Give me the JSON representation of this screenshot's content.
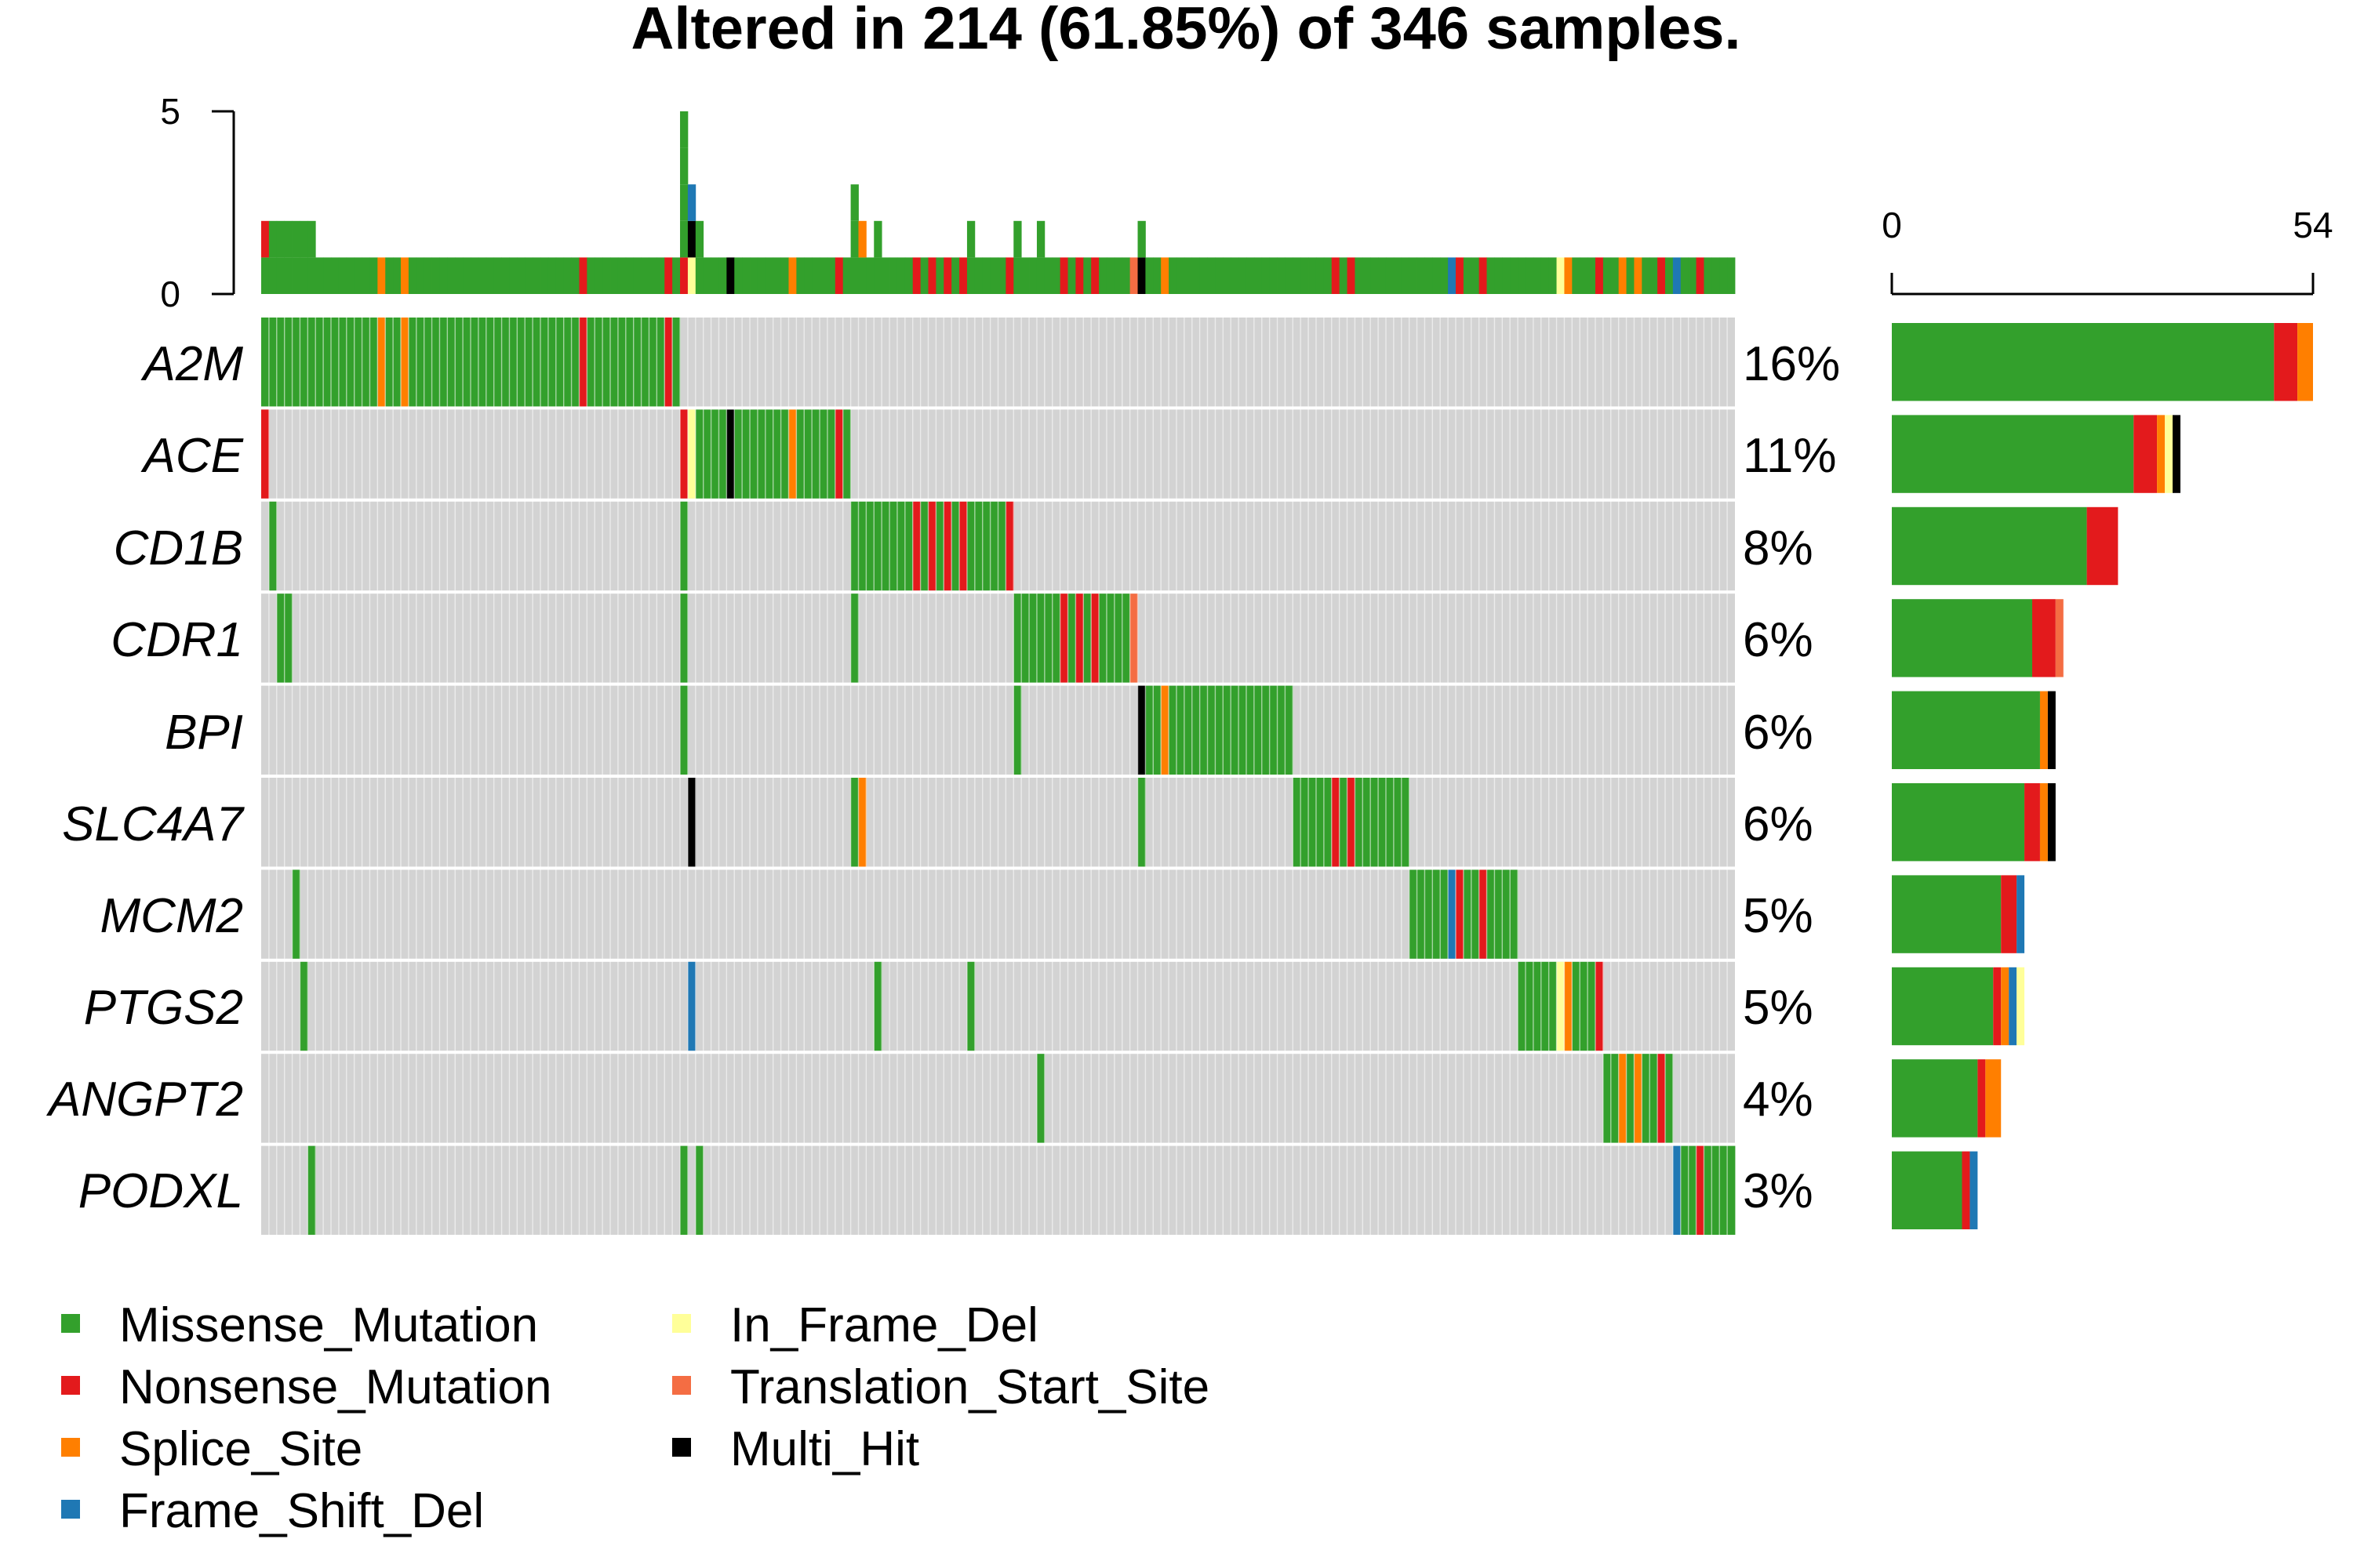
{
  "title": "Altered in 214 (61.85%) of 346 samples.",
  "colors": {
    "Missense_Mutation": "#33A02C",
    "Nonsense_Mutation": "#E31A1C",
    "Splice_Site": "#FF7F00",
    "Frame_Shift_Del": "#1F78B4",
    "In_Frame_Del": "#FFFF99",
    "Translation_Start_Site": "#F46D43",
    "Multi_Hit": "#000000",
    "no_alteration": "#D3D3D3"
  },
  "legend": [
    "Missense_Mutation",
    "Nonsense_Mutation",
    "Splice_Site",
    "Frame_Shift_Del",
    "In_Frame_Del",
    "Translation_Start_Site",
    "Multi_Hit"
  ],
  "chart_data": {
    "type": "oncoplot",
    "title": "Altered in 214 (61.85%) of 346 samples.",
    "total_samples": 346,
    "altered_samples": 214,
    "top_axis": {
      "ticks": [
        "0",
        "5"
      ],
      "range": [
        0,
        5
      ]
    },
    "right_axis": {
      "ticks": [
        "0",
        "54"
      ],
      "range": [
        0,
        54
      ]
    },
    "genes": [
      {
        "name": "A2M",
        "pct": "16%",
        "counts": [
          {
            "type": "Missense_Mutation",
            "n": 49
          },
          {
            "type": "Nonsense_Mutation",
            "n": 3
          },
          {
            "type": "Splice_Site",
            "n": 2
          }
        ]
      },
      {
        "name": "ACE",
        "pct": "11%",
        "counts": [
          {
            "type": "Missense_Mutation",
            "n": 31
          },
          {
            "type": "Nonsense_Mutation",
            "n": 3
          },
          {
            "type": "Splice_Site",
            "n": 1
          },
          {
            "type": "In_Frame_Del",
            "n": 1
          },
          {
            "type": "Multi_Hit",
            "n": 1
          }
        ]
      },
      {
        "name": "CD1B",
        "pct": "8%",
        "counts": [
          {
            "type": "Missense_Mutation",
            "n": 25
          },
          {
            "type": "Nonsense_Mutation",
            "n": 4
          }
        ]
      },
      {
        "name": "CDR1",
        "pct": "6%",
        "counts": [
          {
            "type": "Missense_Mutation",
            "n": 18
          },
          {
            "type": "Nonsense_Mutation",
            "n": 3
          },
          {
            "type": "Translation_Start_Site",
            "n": 1
          }
        ]
      },
      {
        "name": "BPI",
        "pct": "6%",
        "counts": [
          {
            "type": "Missense_Mutation",
            "n": 19
          },
          {
            "type": "Splice_Site",
            "n": 1
          },
          {
            "type": "Multi_Hit",
            "n": 1
          }
        ]
      },
      {
        "name": "SLC4A7",
        "pct": "6%",
        "counts": [
          {
            "type": "Missense_Mutation",
            "n": 17
          },
          {
            "type": "Nonsense_Mutation",
            "n": 2
          },
          {
            "type": "Splice_Site",
            "n": 1
          },
          {
            "type": "Multi_Hit",
            "n": 1
          }
        ]
      },
      {
        "name": "MCM2",
        "pct": "5%",
        "counts": [
          {
            "type": "Missense_Mutation",
            "n": 14
          },
          {
            "type": "Nonsense_Mutation",
            "n": 2
          },
          {
            "type": "Frame_Shift_Del",
            "n": 1
          }
        ]
      },
      {
        "name": "PTGS2",
        "pct": "5%",
        "counts": [
          {
            "type": "Missense_Mutation",
            "n": 13
          },
          {
            "type": "Nonsense_Mutation",
            "n": 1
          },
          {
            "type": "Splice_Site",
            "n": 1
          },
          {
            "type": "Frame_Shift_Del",
            "n": 1
          },
          {
            "type": "In_Frame_Del",
            "n": 1
          }
        ]
      },
      {
        "name": "ANGPT2",
        "pct": "4%",
        "counts": [
          {
            "type": "Missense_Mutation",
            "n": 11
          },
          {
            "type": "Nonsense_Mutation",
            "n": 1
          },
          {
            "type": "Splice_Site",
            "n": 2
          }
        ]
      },
      {
        "name": "PODXL",
        "pct": "3%",
        "counts": [
          {
            "type": "Missense_Mutation",
            "n": 9
          },
          {
            "type": "Nonsense_Mutation",
            "n": 1
          },
          {
            "type": "Frame_Shift_Del",
            "n": 1
          }
        ]
      }
    ],
    "matrix_columns": [
      {
        "n": 1,
        "cells": [
          {
            "g": 0,
            "t": "Missense_Mutation"
          },
          {
            "g": 1,
            "t": "Nonsense_Mutation"
          }
        ]
      },
      {
        "n": 1,
        "cells": [
          {
            "g": 0,
            "t": "Missense_Mutation"
          },
          {
            "g": 2,
            "t": "Missense_Mutation"
          }
        ]
      },
      {
        "n": 2,
        "cells": [
          {
            "g": 0,
            "t": "Missense_Mutation"
          },
          {
            "g": 3,
            "t": "Missense_Mutation"
          }
        ]
      },
      {
        "n": 1,
        "cells": [
          {
            "g": 0,
            "t": "Missense_Mutation"
          },
          {
            "g": 6,
            "t": "Missense_Mutation"
          }
        ]
      },
      {
        "n": 1,
        "cells": [
          {
            "g": 0,
            "t": "Missense_Mutation"
          },
          {
            "g": 7,
            "t": "Missense_Mutation"
          }
        ]
      },
      {
        "n": 1,
        "cells": [
          {
            "g": 0,
            "t": "Missense_Mutation"
          },
          {
            "g": 9,
            "t": "Missense_Mutation"
          }
        ]
      },
      {
        "n": 8,
        "cells": [
          {
            "g": 0,
            "t": "Missense_Mutation"
          }
        ]
      },
      {
        "n": 1,
        "cells": [
          {
            "g": 0,
            "t": "Splice_Site"
          }
        ]
      },
      {
        "n": 2,
        "cells": [
          {
            "g": 0,
            "t": "Missense_Mutation"
          }
        ]
      },
      {
        "n": 1,
        "cells": [
          {
            "g": 0,
            "t": "Splice_Site"
          }
        ]
      },
      {
        "n": 22,
        "cells": [
          {
            "g": 0,
            "t": "Missense_Mutation"
          }
        ]
      },
      {
        "n": 1,
        "cells": [
          {
            "g": 0,
            "t": "Nonsense_Mutation"
          }
        ]
      },
      {
        "n": 10,
        "cells": [
          {
            "g": 0,
            "t": "Missense_Mutation"
          }
        ]
      },
      {
        "n": 1,
        "cells": [
          {
            "g": 0,
            "t": "Nonsense_Mutation"
          }
        ]
      },
      {
        "n": 1,
        "cells": [
          {
            "g": 0,
            "t": "Missense_Mutation"
          }
        ]
      },
      {
        "n": 1,
        "cells": [
          {
            "g": 1,
            "t": "Nonsense_Mutation"
          },
          {
            "g": 2,
            "t": "Missense_Mutation"
          },
          {
            "g": 3,
            "t": "Missense_Mutation"
          },
          {
            "g": 4,
            "t": "Missense_Mutation"
          },
          {
            "g": 9,
            "t": "Missense_Mutation"
          }
        ]
      },
      {
        "n": 1,
        "cells": [
          {
            "g": 1,
            "t": "In_Frame_Del"
          },
          {
            "g": 5,
            "t": "Multi_Hit"
          },
          {
            "g": 7,
            "t": "Frame_Shift_Del"
          }
        ]
      },
      {
        "n": 1,
        "cells": [
          {
            "g": 1,
            "t": "Missense_Mutation"
          },
          {
            "g": 9,
            "t": "Missense_Mutation"
          }
        ]
      },
      {
        "n": 3,
        "cells": [
          {
            "g": 1,
            "t": "Missense_Mutation"
          }
        ]
      },
      {
        "n": 1,
        "cells": [
          {
            "g": 1,
            "t": "Multi_Hit"
          }
        ]
      },
      {
        "n": 7,
        "cells": [
          {
            "g": 1,
            "t": "Missense_Mutation"
          }
        ]
      },
      {
        "n": 1,
        "cells": [
          {
            "g": 1,
            "t": "Splice_Site"
          }
        ]
      },
      {
        "n": 5,
        "cells": [
          {
            "g": 1,
            "t": "Missense_Mutation"
          }
        ]
      },
      {
        "n": 1,
        "cells": [
          {
            "g": 1,
            "t": "Nonsense_Mutation"
          }
        ]
      },
      {
        "n": 1,
        "cells": [
          {
            "g": 1,
            "t": "Missense_Mutation"
          }
        ]
      },
      {
        "n": 1,
        "cells": [
          {
            "g": 2,
            "t": "Missense_Mutation"
          },
          {
            "g": 3,
            "t": "Missense_Mutation"
          },
          {
            "g": 5,
            "t": "Missense_Mutation"
          }
        ]
      },
      {
        "n": 1,
        "cells": [
          {
            "g": 2,
            "t": "Missense_Mutation"
          },
          {
            "g": 5,
            "t": "Splice_Site"
          }
        ]
      },
      {
        "n": 1,
        "cells": [
          {
            "g": 2,
            "t": "Missense_Mutation"
          }
        ]
      },
      {
        "n": 1,
        "cells": [
          {
            "g": 2,
            "t": "Missense_Mutation"
          },
          {
            "g": 7,
            "t": "Missense_Mutation"
          }
        ]
      },
      {
        "n": 4,
        "cells": [
          {
            "g": 2,
            "t": "Missense_Mutation"
          }
        ]
      },
      {
        "n": 1,
        "cells": [
          {
            "g": 2,
            "t": "Nonsense_Mutation"
          }
        ]
      },
      {
        "n": 1,
        "cells": [
          {
            "g": 2,
            "t": "Missense_Mutation"
          }
        ]
      },
      {
        "n": 1,
        "cells": [
          {
            "g": 2,
            "t": "Nonsense_Mutation"
          }
        ]
      },
      {
        "n": 1,
        "cells": [
          {
            "g": 2,
            "t": "Missense_Mutation"
          }
        ]
      },
      {
        "n": 1,
        "cells": [
          {
            "g": 2,
            "t": "Nonsense_Mutation"
          }
        ]
      },
      {
        "n": 1,
        "cells": [
          {
            "g": 2,
            "t": "Missense_Mutation"
          }
        ]
      },
      {
        "n": 1,
        "cells": [
          {
            "g": 2,
            "t": "Nonsense_Mutation"
          }
        ]
      },
      {
        "n": 1,
        "cells": [
          {
            "g": 2,
            "t": "Missense_Mutation"
          },
          {
            "g": 7,
            "t": "Missense_Mutation"
          }
        ]
      },
      {
        "n": 4,
        "cells": [
          {
            "g": 2,
            "t": "Missense_Mutation"
          }
        ]
      },
      {
        "n": 1,
        "cells": [
          {
            "g": 2,
            "t": "Nonsense_Mutation"
          }
        ]
      },
      {
        "n": 1,
        "cells": [
          {
            "g": 3,
            "t": "Missense_Mutation"
          },
          {
            "g": 4,
            "t": "Missense_Mutation"
          }
        ]
      },
      {
        "n": 2,
        "cells": [
          {
            "g": 3,
            "t": "Missense_Mutation"
          }
        ]
      },
      {
        "n": 1,
        "cells": [
          {
            "g": 3,
            "t": "Missense_Mutation"
          },
          {
            "g": 8,
            "t": "Missense_Mutation"
          }
        ]
      },
      {
        "n": 2,
        "cells": [
          {
            "g": 3,
            "t": "Missense_Mutation"
          }
        ]
      },
      {
        "n": 1,
        "cells": [
          {
            "g": 3,
            "t": "Nonsense_Mutation"
          }
        ]
      },
      {
        "n": 1,
        "cells": [
          {
            "g": 3,
            "t": "Missense_Mutation"
          }
        ]
      },
      {
        "n": 1,
        "cells": [
          {
            "g": 3,
            "t": "Nonsense_Mutation"
          }
        ]
      },
      {
        "n": 1,
        "cells": [
          {
            "g": 3,
            "t": "Missense_Mutation"
          }
        ]
      },
      {
        "n": 1,
        "cells": [
          {
            "g": 3,
            "t": "Nonsense_Mutation"
          }
        ]
      },
      {
        "n": 4,
        "cells": [
          {
            "g": 3,
            "t": "Missense_Mutation"
          }
        ]
      },
      {
        "n": 1,
        "cells": [
          {
            "g": 3,
            "t": "Translation_Start_Site"
          }
        ]
      },
      {
        "n": 1,
        "cells": [
          {
            "g": 4,
            "t": "Multi_Hit"
          },
          {
            "g": 5,
            "t": "Missense_Mutation"
          }
        ]
      },
      {
        "n": 2,
        "cells": [
          {
            "g": 4,
            "t": "Missense_Mutation"
          }
        ]
      },
      {
        "n": 1,
        "cells": [
          {
            "g": 4,
            "t": "Splice_Site"
          }
        ]
      },
      {
        "n": 16,
        "cells": [
          {
            "g": 4,
            "t": "Missense_Mutation"
          }
        ]
      },
      {
        "n": 5,
        "cells": [
          {
            "g": 5,
            "t": "Missense_Mutation"
          }
        ]
      },
      {
        "n": 1,
        "cells": [
          {
            "g": 5,
            "t": "Nonsense_Mutation"
          }
        ]
      },
      {
        "n": 1,
        "cells": [
          {
            "g": 5,
            "t": "Missense_Mutation"
          }
        ]
      },
      {
        "n": 1,
        "cells": [
          {
            "g": 5,
            "t": "Nonsense_Mutation"
          }
        ]
      },
      {
        "n": 7,
        "cells": [
          {
            "g": 5,
            "t": "Missense_Mutation"
          }
        ]
      },
      {
        "n": 5,
        "cells": [
          {
            "g": 6,
            "t": "Missense_Mutation"
          }
        ]
      },
      {
        "n": 1,
        "cells": [
          {
            "g": 6,
            "t": "Frame_Shift_Del"
          }
        ]
      },
      {
        "n": 1,
        "cells": [
          {
            "g": 6,
            "t": "Nonsense_Mutation"
          }
        ]
      },
      {
        "n": 2,
        "cells": [
          {
            "g": 6,
            "t": "Missense_Mutation"
          }
        ]
      },
      {
        "n": 1,
        "cells": [
          {
            "g": 6,
            "t": "Nonsense_Mutation"
          }
        ]
      },
      {
        "n": 4,
        "cells": [
          {
            "g": 6,
            "t": "Missense_Mutation"
          }
        ]
      },
      {
        "n": 5,
        "cells": [
          {
            "g": 7,
            "t": "Missense_Mutation"
          }
        ]
      },
      {
        "n": 1,
        "cells": [
          {
            "g": 7,
            "t": "In_Frame_Del"
          }
        ]
      },
      {
        "n": 1,
        "cells": [
          {
            "g": 7,
            "t": "Splice_Site"
          }
        ]
      },
      {
        "n": 3,
        "cells": [
          {
            "g": 7,
            "t": "Missense_Mutation"
          }
        ]
      },
      {
        "n": 1,
        "cells": [
          {
            "g": 7,
            "t": "Nonsense_Mutation"
          }
        ]
      },
      {
        "n": 2,
        "cells": [
          {
            "g": 8,
            "t": "Missense_Mutation"
          }
        ]
      },
      {
        "n": 1,
        "cells": [
          {
            "g": 8,
            "t": "Splice_Site"
          }
        ]
      },
      {
        "n": 1,
        "cells": [
          {
            "g": 8,
            "t": "Missense_Mutation"
          }
        ]
      },
      {
        "n": 1,
        "cells": [
          {
            "g": 8,
            "t": "Splice_Site"
          }
        ]
      },
      {
        "n": 2,
        "cells": [
          {
            "g": 8,
            "t": "Missense_Mutation"
          }
        ]
      },
      {
        "n": 1,
        "cells": [
          {
            "g": 8,
            "t": "Nonsense_Mutation"
          }
        ]
      },
      {
        "n": 1,
        "cells": [
          {
            "g": 8,
            "t": "Missense_Mutation"
          }
        ]
      },
      {
        "n": 1,
        "cells": [
          {
            "g": 9,
            "t": "Frame_Shift_Del"
          }
        ]
      },
      {
        "n": 2,
        "cells": [
          {
            "g": 9,
            "t": "Missense_Mutation"
          }
        ]
      },
      {
        "n": 1,
        "cells": [
          {
            "g": 9,
            "t": "Nonsense_Mutation"
          }
        ]
      },
      {
        "n": 4,
        "cells": [
          {
            "g": 9,
            "t": "Missense_Mutation"
          }
        ]
      }
    ]
  }
}
